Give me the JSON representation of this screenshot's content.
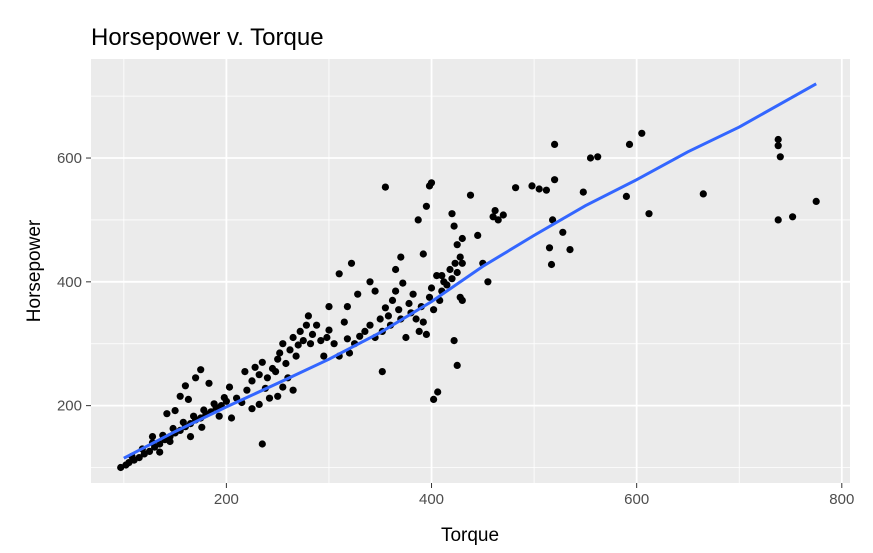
{
  "chart_data": {
    "type": "scatter",
    "title": "Horsepower v. Torque",
    "xlabel": "Torque",
    "ylabel": "Horsepower",
    "xlim": [
      68,
      808
    ],
    "ylim": [
      75,
      760
    ],
    "x_ticks": [
      200,
      400,
      600,
      800
    ],
    "y_ticks": [
      200,
      400,
      600
    ],
    "x_tick_labels": [
      "200",
      "400",
      "600",
      "800"
    ],
    "y_tick_labels": [
      "200",
      "400",
      "600"
    ],
    "grid": true,
    "legend": "none",
    "colors": {
      "panel": "#ebebeb",
      "grid_major": "#ffffff",
      "point": "#000000",
      "trend": "#3366ff"
    },
    "trend_line": {
      "name": "",
      "x": [
        100,
        150,
        200,
        250,
        300,
        350,
        400,
        450,
        500,
        550,
        600,
        650,
        700,
        775
      ],
      "y": [
        115,
        158,
        198,
        236,
        275,
        318,
        368,
        425,
        475,
        523,
        565,
        610,
        650,
        720
      ]
    },
    "points": [
      [
        97,
        100
      ],
      [
        102,
        104
      ],
      [
        105,
        108
      ],
      [
        110,
        112
      ],
      [
        108,
        118
      ],
      [
        115,
        116
      ],
      [
        120,
        122
      ],
      [
        118,
        130
      ],
      [
        125,
        126
      ],
      [
        130,
        133
      ],
      [
        128,
        140
      ],
      [
        135,
        138
      ],
      [
        140,
        145
      ],
      [
        138,
        152
      ],
      [
        145,
        150
      ],
      [
        150,
        156
      ],
      [
        148,
        163
      ],
      [
        155,
        160
      ],
      [
        160,
        166
      ],
      [
        158,
        173
      ],
      [
        165,
        171
      ],
      [
        170,
        177
      ],
      [
        168,
        183
      ],
      [
        175,
        180
      ],
      [
        180,
        186
      ],
      [
        178,
        193
      ],
      [
        185,
        190
      ],
      [
        190,
        197
      ],
      [
        188,
        203
      ],
      [
        195,
        200
      ],
      [
        200,
        207
      ],
      [
        198,
        213
      ],
      [
        142,
        187
      ],
      [
        150,
        192
      ],
      [
        155,
        215
      ],
      [
        163,
        210
      ],
      [
        170,
        245
      ],
      [
        175,
        258
      ],
      [
        183,
        236
      ],
      [
        160,
        232
      ],
      [
        128,
        150
      ],
      [
        135,
        125
      ],
      [
        145,
        142
      ],
      [
        165,
        150
      ],
      [
        176,
        165
      ],
      [
        193,
        183
      ],
      [
        203,
        230
      ],
      [
        210,
        212
      ],
      [
        220,
        225
      ],
      [
        218,
        255
      ],
      [
        225,
        240
      ],
      [
        228,
        262
      ],
      [
        232,
        250
      ],
      [
        235,
        270
      ],
      [
        240,
        245
      ],
      [
        238,
        228
      ],
      [
        245,
        260
      ],
      [
        250,
        275
      ],
      [
        248,
        255
      ],
      [
        252,
        285
      ],
      [
        255,
        300
      ],
      [
        258,
        268
      ],
      [
        262,
        290
      ],
      [
        265,
        310
      ],
      [
        268,
        280
      ],
      [
        270,
        298
      ],
      [
        272,
        320
      ],
      [
        275,
        305
      ],
      [
        278,
        330
      ],
      [
        280,
        345
      ],
      [
        282,
        300
      ],
      [
        284,
        315
      ],
      [
        260,
        245
      ],
      [
        255,
        230
      ],
      [
        250,
        215
      ],
      [
        265,
        225
      ],
      [
        242,
        212
      ],
      [
        232,
        202
      ],
      [
        225,
        195
      ],
      [
        215,
        205
      ],
      [
        205,
        180
      ],
      [
        235,
        138
      ],
      [
        288,
        330
      ],
      [
        292,
        305
      ],
      [
        295,
        280
      ],
      [
        298,
        310
      ],
      [
        300,
        322
      ],
      [
        305,
        300
      ],
      [
        310,
        280
      ],
      [
        315,
        335
      ],
      [
        318,
        308
      ],
      [
        320,
        285
      ],
      [
        325,
        300
      ],
      [
        330,
        312
      ],
      [
        335,
        320
      ],
      [
        340,
        330
      ],
      [
        345,
        310
      ],
      [
        350,
        340
      ],
      [
        352,
        320
      ],
      [
        355,
        358
      ],
      [
        358,
        345
      ],
      [
        360,
        330
      ],
      [
        362,
        370
      ],
      [
        365,
        385
      ],
      [
        368,
        355
      ],
      [
        370,
        340
      ],
      [
        372,
        398
      ],
      [
        375,
        310
      ],
      [
        378,
        365
      ],
      [
        380,
        350
      ],
      [
        382,
        380
      ],
      [
        385,
        340
      ],
      [
        388,
        320
      ],
      [
        390,
        360
      ],
      [
        392,
        335
      ],
      [
        395,
        315
      ],
      [
        398,
        375
      ],
      [
        400,
        390
      ],
      [
        402,
        355
      ],
      [
        405,
        410
      ],
      [
        408,
        370
      ],
      [
        410,
        385
      ],
      [
        412,
        400
      ],
      [
        415,
        395
      ],
      [
        418,
        420
      ],
      [
        420,
        405
      ],
      [
        423,
        430
      ],
      [
        425,
        415
      ],
      [
        428,
        375
      ],
      [
        430,
        370
      ],
      [
        352,
        255
      ],
      [
        355,
        553
      ],
      [
        387,
        500
      ],
      [
        395,
        522
      ],
      [
        398,
        555
      ],
      [
        400,
        560
      ],
      [
        402,
        210
      ],
      [
        406,
        222
      ],
      [
        420,
        510
      ],
      [
        422,
        490
      ],
      [
        425,
        460
      ],
      [
        428,
        440
      ],
      [
        430,
        470
      ],
      [
        438,
        540
      ],
      [
        445,
        475
      ],
      [
        450,
        430
      ],
      [
        455,
        400
      ],
      [
        460,
        505
      ],
      [
        462,
        515
      ],
      [
        465,
        500
      ],
      [
        470,
        508
      ],
      [
        482,
        552
      ],
      [
        498,
        555
      ],
      [
        505,
        550
      ],
      [
        512,
        548
      ],
      [
        515,
        455
      ],
      [
        517,
        428
      ],
      [
        518,
        500
      ],
      [
        520,
        565
      ],
      [
        528,
        480
      ],
      [
        535,
        452
      ],
      [
        548,
        545
      ],
      [
        555,
        600
      ],
      [
        562,
        602
      ],
      [
        590,
        538
      ],
      [
        593,
        622
      ],
      [
        605,
        640
      ],
      [
        612,
        510
      ],
      [
        665,
        542
      ],
      [
        738,
        630
      ],
      [
        738,
        620
      ],
      [
        740,
        602
      ],
      [
        738,
        500
      ],
      [
        752,
        505
      ],
      [
        775,
        530
      ],
      [
        520,
        622
      ],
      [
        422,
        305
      ],
      [
        425,
        265
      ],
      [
        310,
        413
      ],
      [
        322,
        430
      ],
      [
        300,
        360
      ],
      [
        318,
        360
      ],
      [
        328,
        380
      ],
      [
        340,
        400
      ],
      [
        345,
        385
      ],
      [
        365,
        420
      ],
      [
        370,
        440
      ],
      [
        392,
        445
      ],
      [
        410,
        410
      ],
      [
        430,
        430
      ]
    ]
  }
}
